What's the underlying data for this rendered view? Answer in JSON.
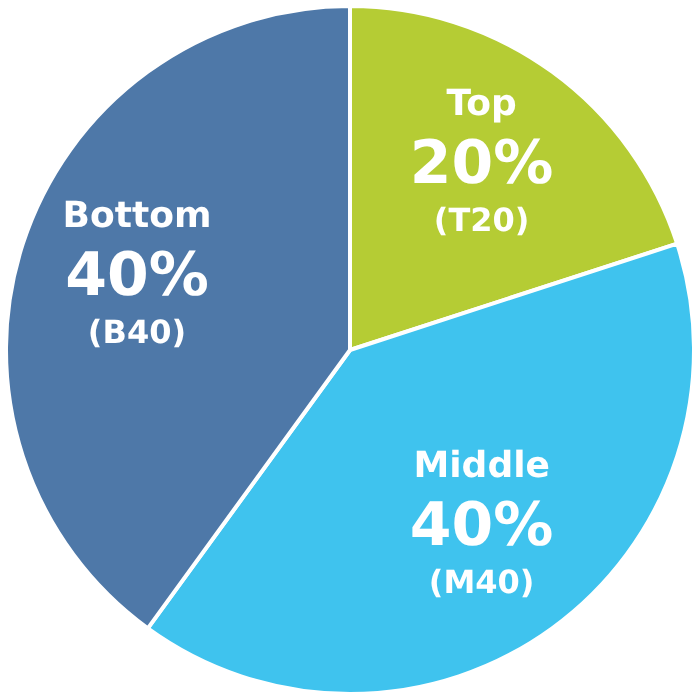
{
  "chart_data": {
    "type": "pie",
    "categories": [
      "Top",
      "Middle",
      "Bottom"
    ],
    "values": [
      20,
      40,
      40
    ],
    "colors": [
      "#b5cc34",
      "#3fc3ee",
      "#4e78a8"
    ],
    "value_labels": [
      "20%",
      "40%",
      "40%"
    ],
    "annotations": [
      "(T20)",
      "(M40)",
      "(B40)"
    ]
  }
}
